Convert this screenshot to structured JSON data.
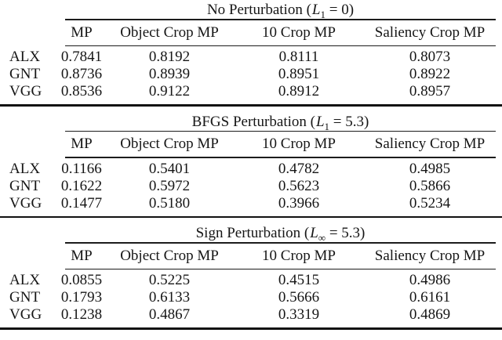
{
  "table": {
    "columns": [
      "MP",
      "Object Crop MP",
      "10 Crop MP",
      "Saliency Crop MP"
    ],
    "sections": [
      {
        "title": {
          "pre": "No Perturbation (",
          "var": "L",
          "sub": "1",
          "post": " = 0)"
        },
        "rows": [
          {
            "label": "ALX",
            "values": [
              "0.7841",
              "0.8192",
              "0.8111",
              "0.8073"
            ]
          },
          {
            "label": "GNT",
            "values": [
              "0.8736",
              "0.8939",
              "0.8951",
              "0.8922"
            ]
          },
          {
            "label": "VGG",
            "values": [
              "0.8536",
              "0.9122",
              "0.8912",
              "0.8957"
            ]
          }
        ]
      },
      {
        "title": {
          "pre": "BFGS Perturbation (",
          "var": "L",
          "sub": "1",
          "post": " = 5.3)"
        },
        "rows": [
          {
            "label": "ALX",
            "values": [
              "0.1166",
              "0.5401",
              "0.4782",
              "0.4985"
            ]
          },
          {
            "label": "GNT",
            "values": [
              "0.1622",
              "0.5972",
              "0.5623",
              "0.5866"
            ]
          },
          {
            "label": "VGG",
            "values": [
              "0.1477",
              "0.5180",
              "0.3966",
              "0.5234"
            ]
          }
        ]
      },
      {
        "title": {
          "pre": "Sign Perturbation (",
          "var": "L",
          "sub": "∞",
          "post": " = 5.3)"
        },
        "rows": [
          {
            "label": "ALX",
            "values": [
              "0.0855",
              "0.5225",
              "0.4515",
              "0.4986"
            ]
          },
          {
            "label": "GNT",
            "values": [
              "0.1793",
              "0.6133",
              "0.5666",
              "0.6161"
            ]
          },
          {
            "label": "VGG",
            "values": [
              "0.1238",
              "0.4867",
              "0.3319",
              "0.4869"
            ]
          }
        ]
      }
    ]
  },
  "colors": {
    "text": "#161616",
    "rule": "#1c1c1c",
    "background": "#ffffff"
  }
}
